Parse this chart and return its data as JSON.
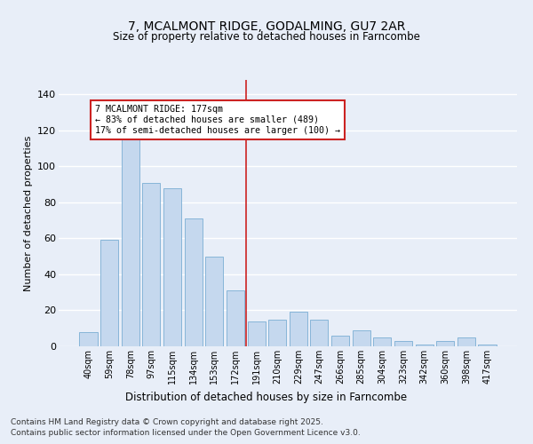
{
  "title": "7, MCALMONT RIDGE, GODALMING, GU7 2AR",
  "subtitle": "Size of property relative to detached houses in Farncombe",
  "xlabel": "Distribution of detached houses by size in Farncombe",
  "ylabel": "Number of detached properties",
  "categories": [
    "40sqm",
    "59sqm",
    "78sqm",
    "97sqm",
    "115sqm",
    "134sqm",
    "153sqm",
    "172sqm",
    "191sqm",
    "210sqm",
    "229sqm",
    "247sqm",
    "266sqm",
    "285sqm",
    "304sqm",
    "323sqm",
    "342sqm",
    "360sqm",
    "398sqm",
    "417sqm"
  ],
  "values": [
    8,
    59,
    117,
    91,
    88,
    71,
    50,
    31,
    14,
    15,
    19,
    15,
    6,
    9,
    5,
    3,
    1,
    3,
    5,
    1
  ],
  "bar_color": "#c5d8ee",
  "bar_edge_color": "#7aaed4",
  "vline_index": 7.5,
  "annotation_text": "7 MCALMONT RIDGE: 177sqm\n← 83% of detached houses are smaller (489)\n17% of semi-detached houses are larger (100) →",
  "annotation_box_color": "#ffffff",
  "annotation_box_edge": "#cc2222",
  "vline_color": "#cc2222",
  "ylim": [
    0,
    148
  ],
  "yticks": [
    0,
    20,
    40,
    60,
    80,
    100,
    120,
    140
  ],
  "footer_line1": "Contains HM Land Registry data © Crown copyright and database right 2025.",
  "footer_line2": "Contains public sector information licensed under the Open Government Licence v3.0.",
  "bg_color": "#e8eef8",
  "plot_bg_color": "#e8eef8",
  "grid_color": "#ffffff"
}
